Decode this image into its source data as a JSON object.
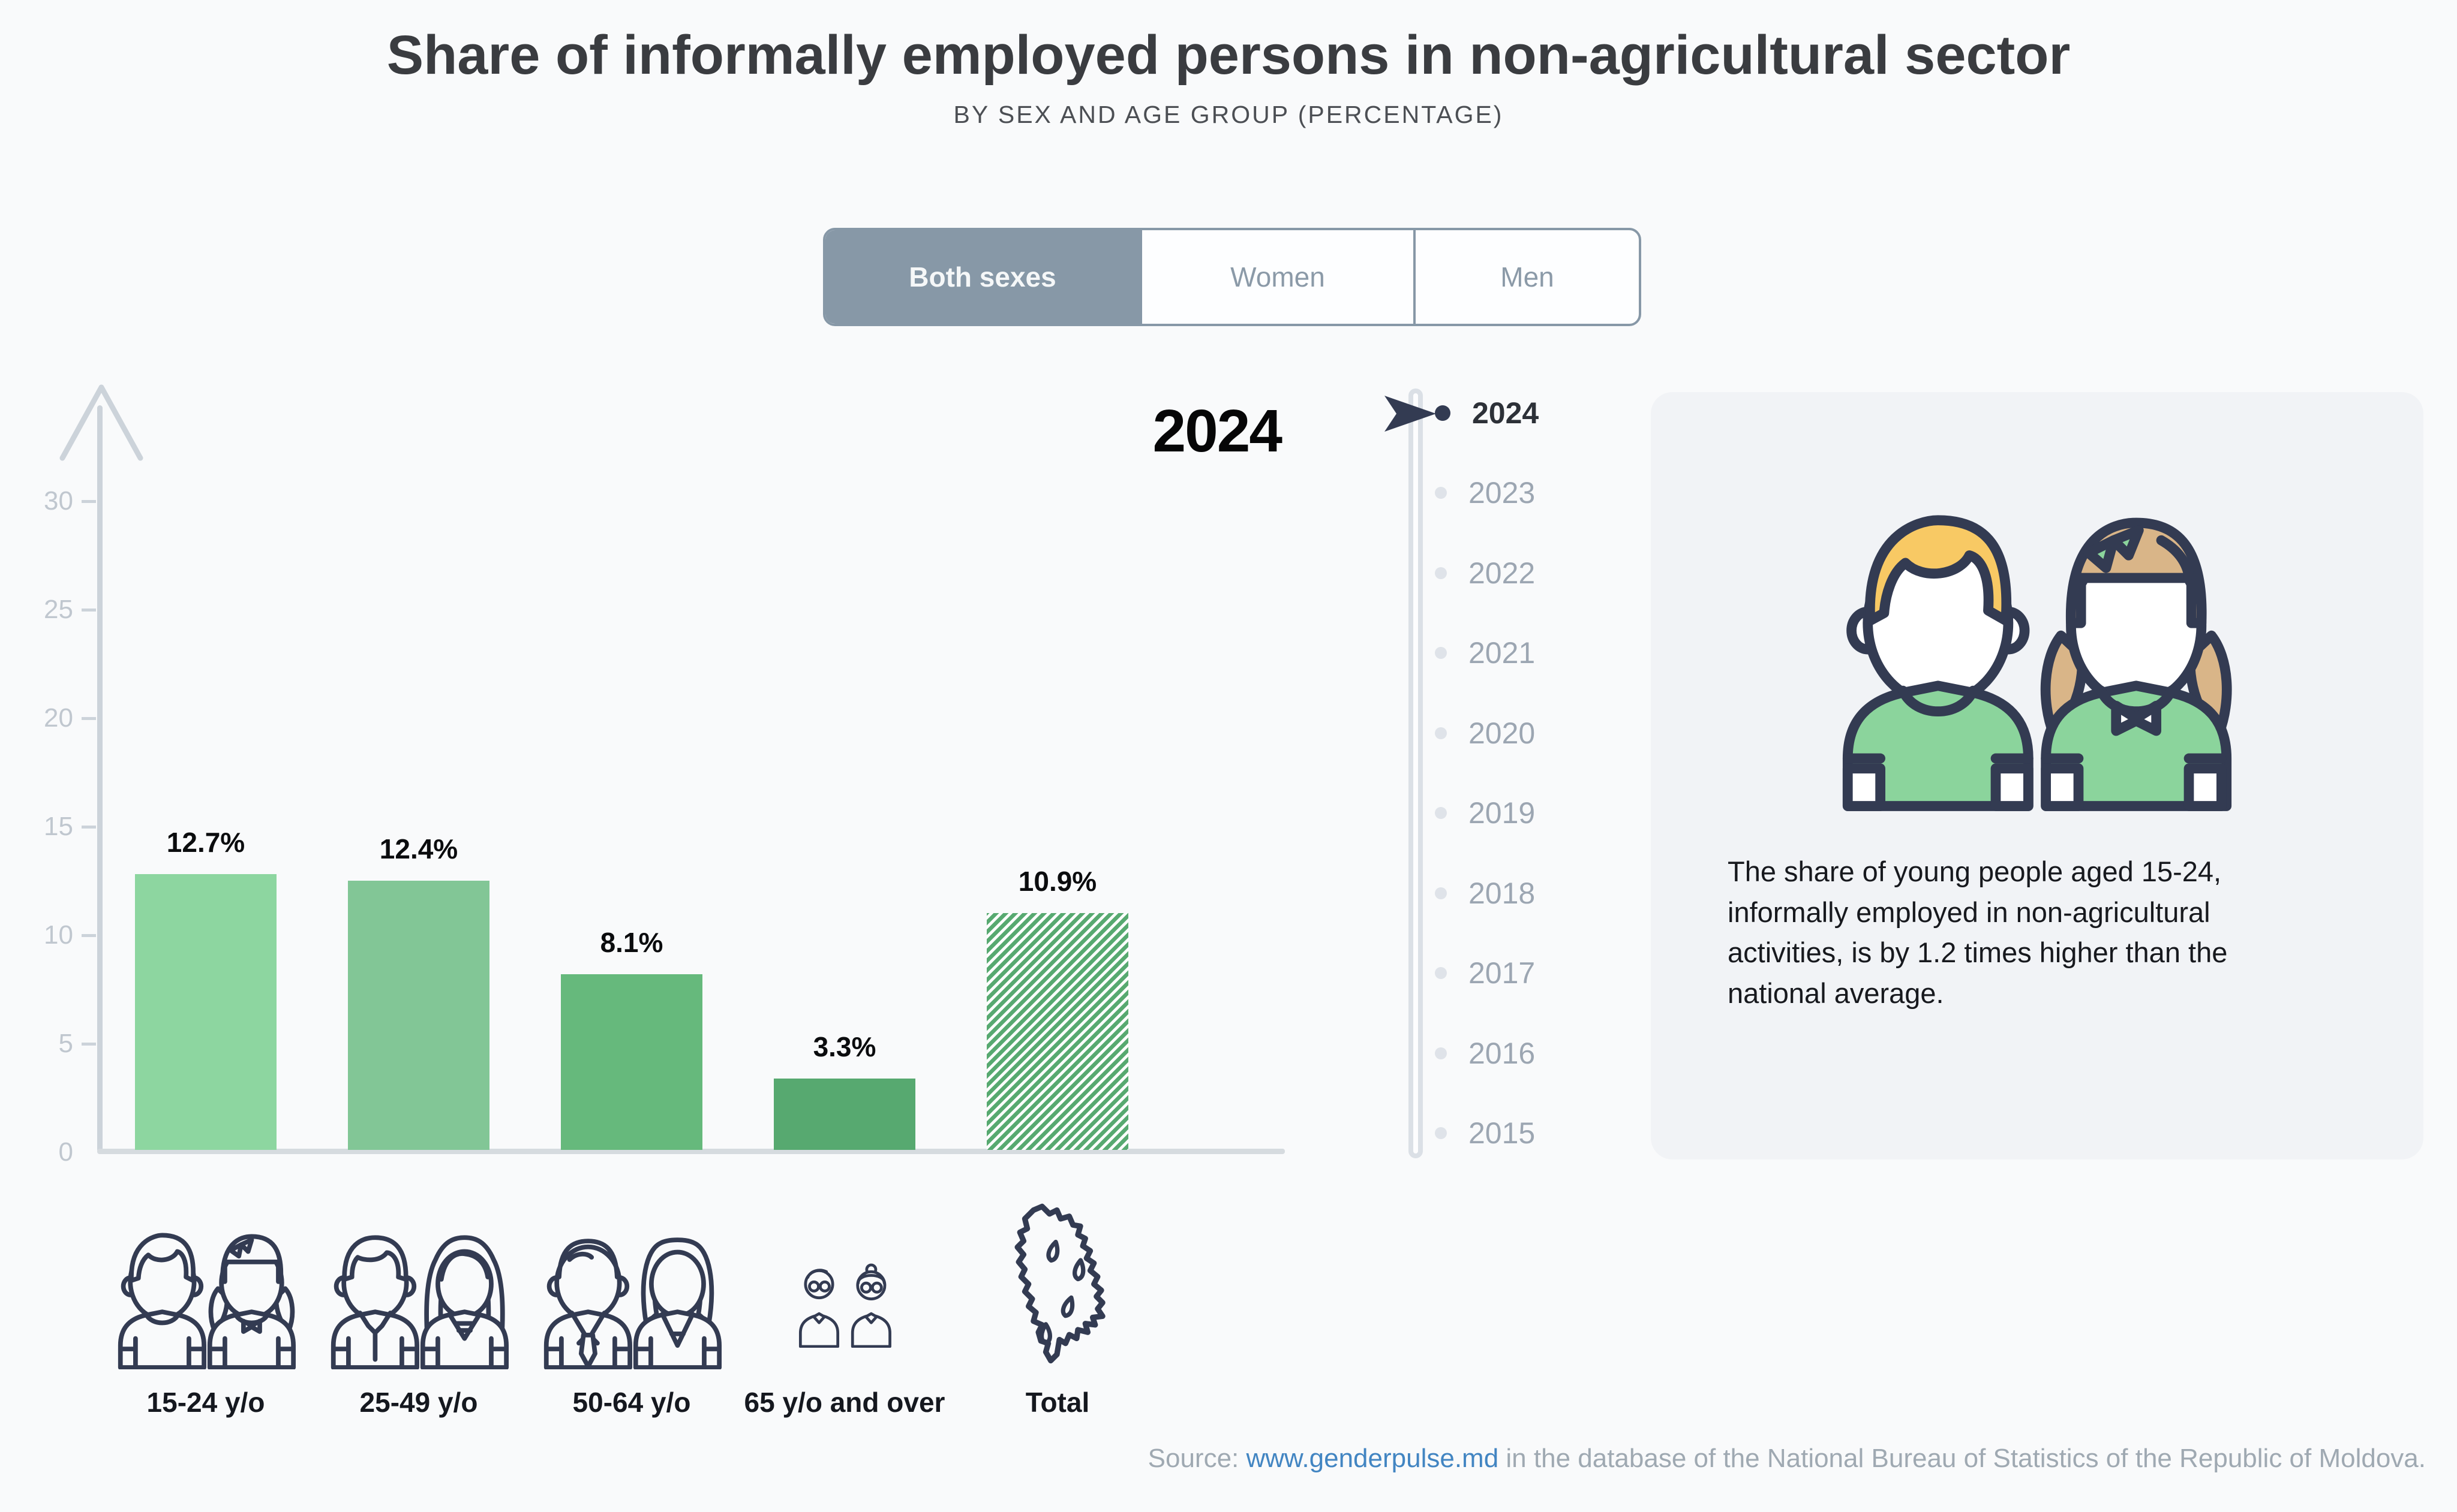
{
  "header": {
    "title": "Share of informally employed persons in non-agricultural sector",
    "subtitle": "BY SEX AND AGE GROUP (PERCENTAGE)"
  },
  "toggle": {
    "options": [
      {
        "label": "Both sexes",
        "selected": true
      },
      {
        "label": "Women",
        "selected": false
      },
      {
        "label": "Men",
        "selected": false
      }
    ]
  },
  "chart_data": {
    "type": "bar",
    "title": "Share of informally employed persons in non-agricultural sector",
    "subtitle": "By sex and age group (percentage)",
    "categories": [
      "15-24 y/o",
      "25-49 y/o",
      "50-64 y/o",
      "65 y/o and over",
      "Total"
    ],
    "values": [
      12.7,
      12.4,
      8.1,
      3.3,
      10.9
    ],
    "value_labels": [
      "12.7%",
      "12.4%",
      "8.1%",
      "3.3%",
      "10.9%"
    ],
    "ylim": [
      0,
      30
    ],
    "yticks": [
      30,
      25,
      20,
      15,
      10,
      5,
      0
    ],
    "grid": false,
    "legend": "none",
    "bar_colors": [
      "#8dd6a0",
      "#82c696",
      "#66b97c",
      "#57a970"
    ],
    "hatch_color": "#57a970",
    "total_bar_style": "hatched",
    "selected_year": "2024",
    "icons": [
      "young-pair-icon",
      "adult-pair-icon",
      "senior-pair-icon",
      "elderly-pair-icon",
      "moldova-map-icon"
    ]
  },
  "timeline": {
    "current_year": "2024",
    "years": [
      {
        "label": "2024",
        "selected": true
      },
      {
        "label": "2023",
        "selected": false
      },
      {
        "label": "2022",
        "selected": false
      },
      {
        "label": "2021",
        "selected": false
      },
      {
        "label": "2020",
        "selected": false
      },
      {
        "label": "2019",
        "selected": false
      },
      {
        "label": "2018",
        "selected": false
      },
      {
        "label": "2017",
        "selected": false
      },
      {
        "label": "2016",
        "selected": false
      },
      {
        "label": "2015",
        "selected": false
      }
    ]
  },
  "infobox": {
    "text": "The share of young people aged 15-24, informally employed in non-agricultural activities, is by 1.2 times higher than the national average."
  },
  "source": {
    "prefix": "Source: ",
    "link_text": "www.genderpulse.md",
    "suffix": " in the database of the National Bureau of Statistics of the Republic of Moldova."
  },
  "colors": {
    "accent_green_light": "#8dd6a0",
    "accent_green": "#66b97c",
    "accent_green_dark": "#57a970",
    "selector_gray_blue": "#8798a7",
    "navy_outline": "#333b52",
    "axis_gray": "#ccd3da",
    "link_blue": "#4285c2",
    "boy_hair": "#f8c964",
    "girl_hair": "#d9b588"
  }
}
